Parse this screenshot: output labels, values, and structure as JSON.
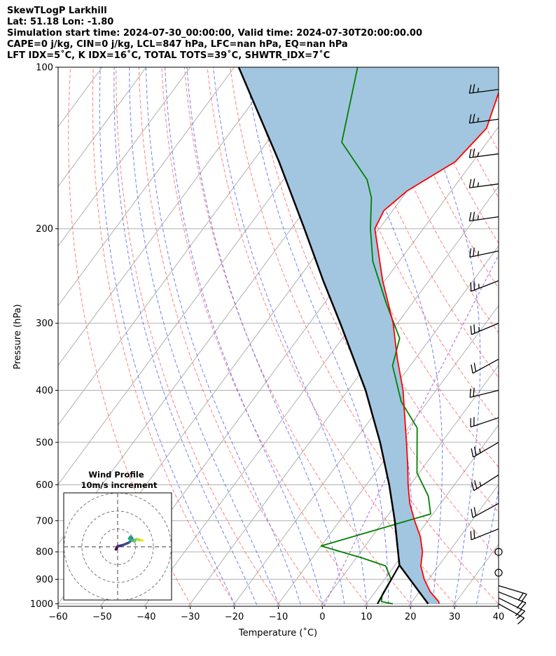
{
  "titles": [
    "SkewTLogP Larkhill",
    "Lat: 51.18   Lon: -1.80",
    "Simulation start time: 2024-07-30_00:00:00, Valid time: 2024-07-30T20:00:00.00",
    "CAPE=0 j/kg, CIN=0 j/kg, LCL=847 hPa, LFC=nan hPa, EQ=nan hPa",
    "LFT IDX=5˚C, K IDX=16˚C, TOTAL TOTS=39˚C, SHWTR_IDX=7˚C"
  ],
  "chart_data": {
    "type": "skewt-logp",
    "xlabel": "Temperature (˚C)",
    "ylabel": "Pressure (hPa)",
    "xlim": [
      -60,
      40
    ],
    "ylim": [
      1050,
      100
    ],
    "skew_deg_per_log_decade": 90,
    "x_ticks": [
      "−60",
      "−50",
      "−40",
      "−30",
      "−20",
      "−10",
      "0",
      "10",
      "20",
      "30",
      "40"
    ],
    "y_ticks": [
      "100",
      "200",
      "300",
      "400",
      "500",
      "600",
      "700",
      "800",
      "900",
      "1000"
    ],
    "temperature": [
      {
        "p": 1000,
        "t": 26.5
      },
      {
        "p": 990,
        "t": 26.0
      },
      {
        "p": 950,
        "t": 22.5
      },
      {
        "p": 900,
        "t": 19.0
      },
      {
        "p": 850,
        "t": 16.0
      },
      {
        "p": 800,
        "t": 14.0
      },
      {
        "p": 750,
        "t": 11.0
      },
      {
        "p": 700,
        "t": 7.0
      },
      {
        "p": 650,
        "t": 3.0
      },
      {
        "p": 600,
        "t": -0.5
      },
      {
        "p": 550,
        "t": -4.0
      },
      {
        "p": 500,
        "t": -8.0
      },
      {
        "p": 450,
        "t": -12.5
      },
      {
        "p": 400,
        "t": -17.5
      },
      {
        "p": 350,
        "t": -24.0
      },
      {
        "p": 300,
        "t": -31.0
      },
      {
        "p": 250,
        "t": -40.5
      },
      {
        "p": 200,
        "t": -51.0
      },
      {
        "p": 185,
        "t": -52.0
      },
      {
        "p": 170,
        "t": -50.0
      },
      {
        "p": 150,
        "t": -44.0
      },
      {
        "p": 130,
        "t": -42.5
      },
      {
        "p": 100,
        "t": -48.0
      }
    ],
    "dewpoint": [
      {
        "p": 1000,
        "t": 16.0
      },
      {
        "p": 990,
        "t": 13.0
      },
      {
        "p": 960,
        "t": 12.0
      },
      {
        "p": 900,
        "t": 11.5
      },
      {
        "p": 850,
        "t": 8.0
      },
      {
        "p": 820,
        "t": 1.0
      },
      {
        "p": 780,
        "t": -10.0
      },
      {
        "p": 680,
        "t": 9.5
      },
      {
        "p": 630,
        "t": 6.0
      },
      {
        "p": 570,
        "t": -0.5
      },
      {
        "p": 470,
        "t": -8.0
      },
      {
        "p": 420,
        "t": -16.0
      },
      {
        "p": 360,
        "t": -24.0
      },
      {
        "p": 320,
        "t": -27.0
      },
      {
        "p": 275,
        "t": -36.0
      },
      {
        "p": 230,
        "t": -46.0
      },
      {
        "p": 200,
        "t": -52.0
      },
      {
        "p": 175,
        "t": -57.0
      },
      {
        "p": 162,
        "t": -61.0
      },
      {
        "p": 138,
        "t": -73.0
      },
      {
        "p": 100,
        "t": -82.0
      }
    ],
    "parcel": [
      {
        "p": 1000,
        "t": 24.0
      },
      {
        "p": 847,
        "t": 11.0
      },
      {
        "p": 700,
        "t": 2.5
      },
      {
        "p": 600,
        "t": -4.8
      },
      {
        "p": 500,
        "t": -14.0
      },
      {
        "p": 400,
        "t": -26.0
      },
      {
        "p": 300,
        "t": -43.0
      },
      {
        "p": 250,
        "t": -54.0
      },
      {
        "p": 200,
        "t": -67.0
      },
      {
        "p": 150,
        "t": -84.0
      },
      {
        "p": 100,
        "t": -109.0
      }
    ],
    "parcel_lower": [
      {
        "p": 1000,
        "t": 12.5
      },
      {
        "p": 847,
        "t": 11.0
      }
    ],
    "wind_barbs": [
      {
        "p": 1000,
        "u": -9,
        "v": 5
      },
      {
        "p": 975,
        "u": -10,
        "v": 5
      },
      {
        "p": 950,
        "u": -10,
        "v": 4
      },
      {
        "p": 925,
        "u": -10,
        "v": 3
      },
      {
        "p": 875,
        "u": 0,
        "v": 0
      },
      {
        "p": 800,
        "u": 0,
        "v": 0
      },
      {
        "p": 725,
        "u": 10,
        "v": 4
      },
      {
        "p": 650,
        "u": 11,
        "v": 6
      },
      {
        "p": 575,
        "u": 11,
        "v": 7
      },
      {
        "p": 500,
        "u": 12,
        "v": 7
      },
      {
        "p": 450,
        "u": 12,
        "v": 4
      },
      {
        "p": 400,
        "u": 12,
        "v": 3
      },
      {
        "p": 350,
        "u": 11,
        "v": 6
      },
      {
        "p": 300,
        "u": 12,
        "v": 5
      },
      {
        "p": 250,
        "u": 13,
        "v": 5
      },
      {
        "p": 220,
        "u": 14,
        "v": 3
      },
      {
        "p": 190,
        "u": 14,
        "v": 2
      },
      {
        "p": 165,
        "u": 15,
        "v": 2
      },
      {
        "p": 145,
        "u": 15,
        "v": 2
      },
      {
        "p": 125,
        "u": 15,
        "v": 2
      },
      {
        "p": 110,
        "u": 15,
        "v": 2
      }
    ],
    "hodograph": {
      "title": "Wind Profile",
      "subtitle": "10m/s increment",
      "rings_ms": [
        10,
        20,
        30
      ],
      "points": [
        {
          "u": -1.0,
          "v": -1.5
        },
        {
          "u": -0.5,
          "v": -0.8
        },
        {
          "u": 0.0,
          "v": 0.3
        },
        {
          "u": 1.5,
          "v": 0.6
        },
        {
          "u": 3.0,
          "v": 1.0
        },
        {
          "u": 5.0,
          "v": 1.8
        },
        {
          "u": 6.5,
          "v": 2.5
        },
        {
          "u": 7.5,
          "v": 3.5
        },
        {
          "u": 8.0,
          "v": 5.0
        },
        {
          "u": 7.0,
          "v": 5.5
        },
        {
          "u": 6.5,
          "v": 4.5
        },
        {
          "u": 7.0,
          "v": 4.0
        },
        {
          "u": 8.5,
          "v": 3.5
        },
        {
          "u": 9.5,
          "v": 3.0
        },
        {
          "u": 10.0,
          "v": 4.0
        },
        {
          "u": 11.0,
          "v": 4.3
        },
        {
          "u": 12.0,
          "v": 3.8
        },
        {
          "u": 13.5,
          "v": 3.7
        },
        {
          "u": 14.0,
          "v": 3.5
        }
      ]
    },
    "colors": {
      "temperature": "#ff0000",
      "dewpoint": "#008000",
      "parcel": "#000000",
      "cape_fill": "#a2c6df",
      "isotherms": "#b0b0b0",
      "dry_adiabats": "#ff6a6a",
      "moist_adiabats": "#5a6cf2",
      "mixing_ratio": "#9a3fd1"
    }
  }
}
